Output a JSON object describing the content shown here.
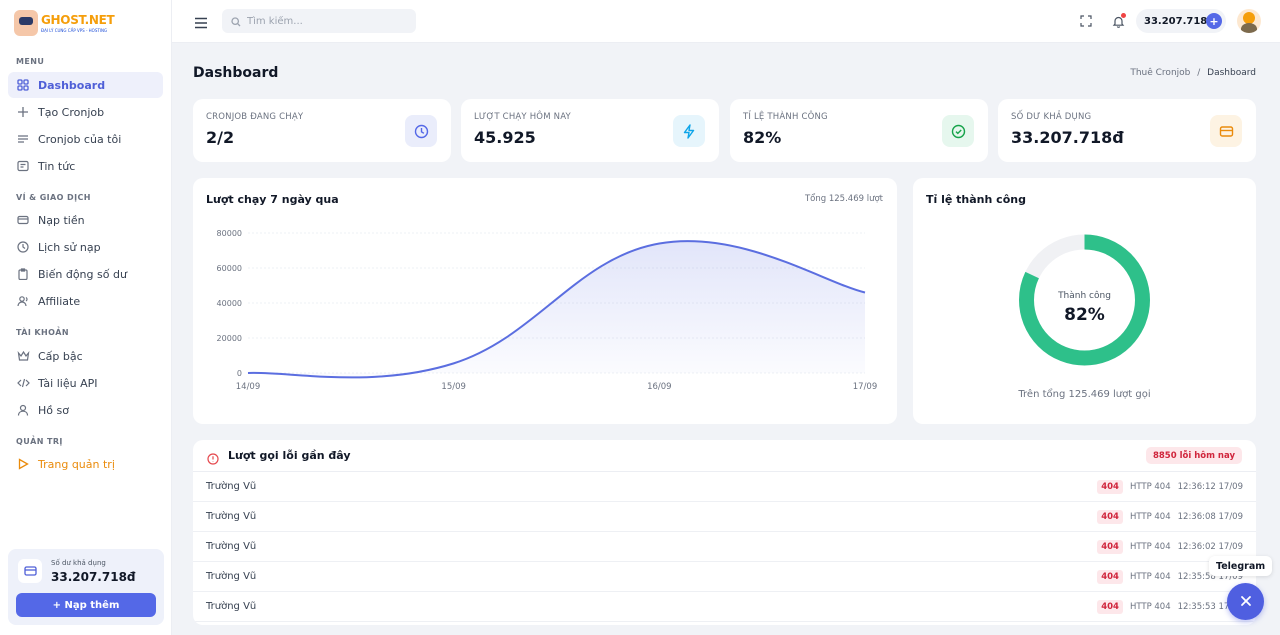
{
  "logo": {
    "name": "GHOST.NET",
    "tagline": "ĐẠI LÝ CUNG CẤP VPS - HOSTING"
  },
  "sidebar": {
    "sections": [
      {
        "title": "MENU"
      },
      {
        "title": "VÍ & GIAO DỊCH"
      },
      {
        "title": "TÀI KHOẢN"
      },
      {
        "title": "QUẢN TRỊ"
      }
    ],
    "items": [
      {
        "label": "Dashboard",
        "icon": "grid-icon"
      },
      {
        "label": "Tạo Cronjob",
        "icon": "plus-icon"
      },
      {
        "label": "Cronjob của tôi",
        "icon": "list-icon"
      },
      {
        "label": "Tin tức",
        "icon": "newspaper-icon"
      },
      {
        "label": "Nạp tiền",
        "icon": "card-icon"
      },
      {
        "label": "Lịch sử nạp",
        "icon": "history-icon"
      },
      {
        "label": "Biến động số dư",
        "icon": "clipboard-icon"
      },
      {
        "label": "Affiliate",
        "icon": "users-icon"
      },
      {
        "label": "Cấp bậc",
        "icon": "crown-icon"
      },
      {
        "label": "Tài liệu API",
        "icon": "code-icon"
      },
      {
        "label": "Hồ sơ",
        "icon": "user-icon"
      },
      {
        "label": "Trang quản trị",
        "icon": "play-icon"
      }
    ],
    "balance": {
      "label": "Số dư khả dụng",
      "amount": "33.207.718đ",
      "button": "+ Nạp thêm"
    }
  },
  "header": {
    "search_placeholder": "Tìm kiếm...",
    "balance": "33.207.718đ",
    "plus": "+"
  },
  "page": {
    "title": "Dashboard",
    "breadcrumb": [
      "Thuê Cronjob",
      "/",
      "Dashboard"
    ]
  },
  "stats": [
    {
      "label": "CRONJOB ĐANG CHẠY",
      "value": "2/2",
      "icon": "clock-icon",
      "color": "#5468e7",
      "bg": "#eaedfb"
    },
    {
      "label": "LƯỢT CHẠY HÔM NAY",
      "value": "45.925",
      "icon": "bolt-icon",
      "color": "#0ea5e9",
      "bg": "#e6f5fc"
    },
    {
      "label": "TỈ LỆ THÀNH CÔNG",
      "value": "82%",
      "icon": "check-circle-icon",
      "color": "#16a34a",
      "bg": "#e6f7ee"
    },
    {
      "label": "SỐ DƯ KHẢ DỤNG",
      "value": "33.207.718đ",
      "icon": "wallet-icon",
      "color": "#ea8b0c",
      "bg": "#fdf3e3"
    }
  ],
  "runs_chart": {
    "title": "Lượt chạy 7 ngày qua",
    "meta": "Tổng 125.469 lượt"
  },
  "chart_data": {
    "type": "area",
    "x": [
      "14/09",
      "15/09",
      "16/09",
      "17/09"
    ],
    "series": [
      {
        "values": [
          0,
          5500,
          74000,
          46000
        ]
      }
    ],
    "yticks": [
      0,
      20000,
      40000,
      60000,
      80000
    ],
    "ylim": [
      0,
      80000
    ],
    "grid": true,
    "color": "#5b6ee0"
  },
  "success": {
    "title": "Tỉ lệ thành công",
    "center_label": "Thành công",
    "center_value": "82%",
    "percent": 82,
    "footer": "Trên tổng 125.469 lượt gọi",
    "color": "#2ec08a",
    "track": "#f0f1f4"
  },
  "errors": {
    "title": "Lượt gọi lỗi gần đây",
    "badge": "8850 lỗi hôm nay",
    "rows": [
      {
        "user": "Trường Vũ",
        "code": "404",
        "http": "HTTP 404",
        "time": "12:36:12 17/09"
      },
      {
        "user": "Trường Vũ",
        "code": "404",
        "http": "HTTP 404",
        "time": "12:36:08 17/09"
      },
      {
        "user": "Trường Vũ",
        "code": "404",
        "http": "HTTP 404",
        "time": "12:36:02 17/09"
      },
      {
        "user": "Trường Vũ",
        "code": "404",
        "http": "HTTP 404",
        "time": "12:35:58 17/09"
      },
      {
        "user": "Trường Vũ",
        "code": "404",
        "http": "HTTP 404",
        "time": "12:35:53 17/09"
      }
    ]
  },
  "telegram": {
    "label": "Telegram"
  }
}
